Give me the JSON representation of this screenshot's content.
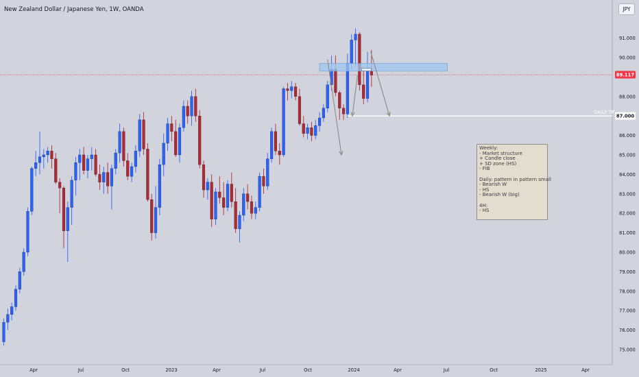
{
  "header": {
    "title": "New Zealand Dollar / Japanese Yen, 1W, OANDA",
    "currency": "JPY"
  },
  "price_axis": {
    "ticks": [
      "91.000",
      "90.000",
      "88.000",
      "87.000",
      "86.000",
      "85.000",
      "84.000",
      "83.000",
      "82.000",
      "81.000",
      "80.000",
      "79.000",
      "78.000",
      "77.000",
      "76.000",
      "75.000"
    ],
    "current_price": "89.117",
    "current_price_color": "#f23645",
    "tp_price": "87.000"
  },
  "time_axis": {
    "labels": [
      "Apr",
      "Jul",
      "Oct",
      "2023",
      "Apr",
      "Jul",
      "Oct",
      "2024",
      "Apr",
      "Jul",
      "Oct",
      "2025",
      "Apr"
    ]
  },
  "drawings": {
    "tp_label": "DAILY TP",
    "note_lines": [
      "Weekly:",
      "- Market structure",
      "+ Candle close",
      "+ SD zone (HS)",
      "- FIB",
      "",
      "Daily: pattern in pattern small",
      "- Bearish W",
      "- HS",
      "- Bearish W (big)",
      "",
      "4H:",
      "- HS"
    ]
  },
  "colors": {
    "background": "#d1d4dc",
    "up": "#2962ff",
    "down": "#b22833",
    "zone": "#9ec5f0",
    "tp_line": "#ffffff",
    "arrow": "#8a8a8a"
  },
  "chart_data": {
    "type": "candlestick",
    "symbol": "NZDJPY",
    "interval": "1W",
    "ylim": [
      74.4,
      91.9
    ],
    "x_start_week": 0,
    "candles": [
      [
        75.4,
        76.6,
        75.2,
        76.4
      ],
      [
        76.4,
        77.1,
        76.0,
        76.8
      ],
      [
        76.8,
        77.4,
        76.5,
        77.2
      ],
      [
        77.2,
        78.3,
        77.0,
        78.1
      ],
      [
        78.1,
        79.2,
        77.9,
        79.0
      ],
      [
        79.0,
        80.2,
        78.8,
        80.0
      ],
      [
        80.0,
        82.3,
        79.8,
        82.1
      ],
      [
        82.1,
        84.4,
        81.9,
        84.3
      ],
      [
        84.3,
        85.2,
        83.9,
        84.6
      ],
      [
        84.6,
        86.2,
        84.0,
        84.9
      ],
      [
        84.9,
        85.3,
        84.3,
        85.0
      ],
      [
        85.0,
        85.4,
        84.6,
        85.2
      ],
      [
        85.2,
        85.5,
        84.3,
        84.8
      ],
      [
        84.8,
        85.1,
        83.5,
        83.6
      ],
      [
        83.6,
        83.8,
        82.0,
        83.3
      ],
      [
        83.3,
        83.4,
        80.2,
        81.1
      ],
      [
        81.1,
        82.6,
        79.5,
        82.3
      ],
      [
        82.3,
        83.9,
        81.4,
        83.7
      ],
      [
        83.7,
        84.9,
        82.9,
        84.6
      ],
      [
        84.6,
        85.3,
        83.7,
        85.0
      ],
      [
        85.0,
        85.4,
        84.0,
        84.2
      ],
      [
        84.2,
        85.0,
        83.8,
        84.8
      ],
      [
        84.8,
        85.4,
        84.2,
        85.0
      ],
      [
        85.0,
        85.3,
        83.9,
        84.0
      ],
      [
        84.0,
        84.5,
        83.2,
        83.6
      ],
      [
        83.6,
        84.4,
        83.0,
        84.1
      ],
      [
        84.1,
        84.6,
        83.0,
        83.4
      ],
      [
        83.4,
        84.5,
        82.2,
        84.3
      ],
      [
        84.3,
        85.3,
        84.0,
        85.1
      ],
      [
        85.1,
        86.6,
        84.6,
        86.2
      ],
      [
        86.2,
        86.4,
        84.4,
        84.7
      ],
      [
        84.7,
        85.1,
        83.7,
        83.9
      ],
      [
        83.9,
        84.6,
        83.6,
        84.4
      ],
      [
        84.4,
        85.5,
        84.1,
        85.2
      ],
      [
        85.2,
        87.1,
        84.9,
        86.8
      ],
      [
        86.8,
        87.2,
        85.0,
        85.3
      ],
      [
        85.3,
        85.6,
        82.6,
        82.7
      ],
      [
        82.7,
        83.0,
        80.6,
        81.0
      ],
      [
        81.0,
        83.4,
        80.7,
        82.3
      ],
      [
        82.3,
        84.8,
        81.9,
        84.5
      ],
      [
        84.5,
        86.1,
        83.9,
        85.6
      ],
      [
        85.6,
        86.9,
        85.2,
        86.6
      ],
      [
        86.6,
        87.0,
        85.7,
        86.2
      ],
      [
        86.2,
        86.8,
        84.9,
        85.0
      ],
      [
        85.0,
        86.6,
        84.6,
        86.4
      ],
      [
        86.4,
        87.8,
        86.2,
        87.5
      ],
      [
        87.5,
        87.8,
        86.6,
        87.0
      ],
      [
        87.0,
        88.3,
        86.5,
        88.0
      ],
      [
        88.0,
        88.4,
        86.7,
        87.0
      ],
      [
        87.0,
        87.3,
        84.3,
        84.5
      ],
      [
        84.5,
        84.7,
        82.8,
        83.2
      ],
      [
        83.2,
        83.8,
        82.7,
        83.6
      ],
      [
        83.6,
        84.0,
        81.3,
        81.7
      ],
      [
        81.7,
        83.3,
        81.4,
        83.1
      ],
      [
        83.1,
        83.9,
        82.5,
        82.8
      ],
      [
        82.8,
        83.6,
        81.9,
        82.3
      ],
      [
        82.3,
        83.7,
        82.1,
        83.5
      ],
      [
        83.5,
        84.1,
        82.3,
        82.6
      ],
      [
        82.6,
        83.3,
        81.0,
        81.2
      ],
      [
        81.2,
        82.1,
        80.5,
        81.9
      ],
      [
        81.9,
        83.3,
        81.6,
        83.0
      ],
      [
        83.0,
        83.5,
        82.2,
        82.6
      ],
      [
        82.6,
        82.9,
        81.7,
        82.0
      ],
      [
        82.0,
        82.6,
        81.7,
        82.3
      ],
      [
        82.3,
        84.1,
        82.1,
        83.9
      ],
      [
        83.9,
        84.3,
        83.0,
        83.4
      ],
      [
        83.4,
        85.1,
        83.2,
        84.8
      ],
      [
        84.8,
        86.4,
        84.6,
        86.2
      ],
      [
        86.2,
        86.6,
        85.0,
        85.2
      ],
      [
        85.2,
        85.6,
        84.5,
        85.0
      ],
      [
        85.0,
        88.5,
        84.9,
        88.4
      ],
      [
        88.4,
        88.7,
        87.8,
        88.3
      ],
      [
        88.3,
        88.8,
        87.9,
        88.5
      ],
      [
        88.5,
        88.7,
        87.8,
        88.0
      ],
      [
        88.0,
        88.4,
        86.5,
        86.6
      ],
      [
        86.6,
        87.0,
        85.9,
        86.1
      ],
      [
        86.1,
        86.6,
        85.8,
        86.4
      ],
      [
        86.4,
        86.7,
        85.7,
        86.0
      ],
      [
        86.0,
        86.8,
        85.8,
        86.5
      ],
      [
        86.5,
        87.2,
        86.2,
        86.9
      ],
      [
        86.9,
        87.6,
        86.7,
        87.4
      ],
      [
        87.4,
        88.8,
        87.2,
        88.6
      ],
      [
        88.6,
        90.1,
        88.3,
        89.4
      ],
      [
        89.4,
        90.1,
        88.0,
        88.2
      ],
      [
        88.2,
        88.3,
        86.8,
        87.4
      ],
      [
        87.4,
        87.6,
        86.8,
        87.1
      ],
      [
        87.1,
        90.2,
        86.9,
        89.7
      ],
      [
        89.7,
        91.2,
        89.4,
        90.9
      ],
      [
        90.9,
        91.5,
        89.6,
        91.2
      ],
      [
        91.2,
        91.3,
        88.3,
        88.6
      ],
      [
        88.6,
        89.4,
        87.6,
        87.9
      ],
      [
        87.9,
        90.3,
        87.7,
        89.3
      ],
      [
        89.3,
        90.4,
        88.5,
        89.1
      ]
    ],
    "sd_zone": {
      "from": 89.7,
      "to": 89.3,
      "start_week": 79,
      "end_week": 111
    },
    "daily_tp": {
      "price": 87.0,
      "start_week": 86
    },
    "arrows": [
      {
        "from_week": 81,
        "from_price": 89.9,
        "to_week": 84.5,
        "to_price": 85.0
      },
      {
        "from_week": 88.5,
        "from_price": 89.1,
        "to_week": 87.2,
        "to_price": 87.0
      },
      {
        "from_week": 91.8,
        "from_price": 90.3,
        "to_week": 96.5,
        "to_price": 87.0
      }
    ]
  }
}
